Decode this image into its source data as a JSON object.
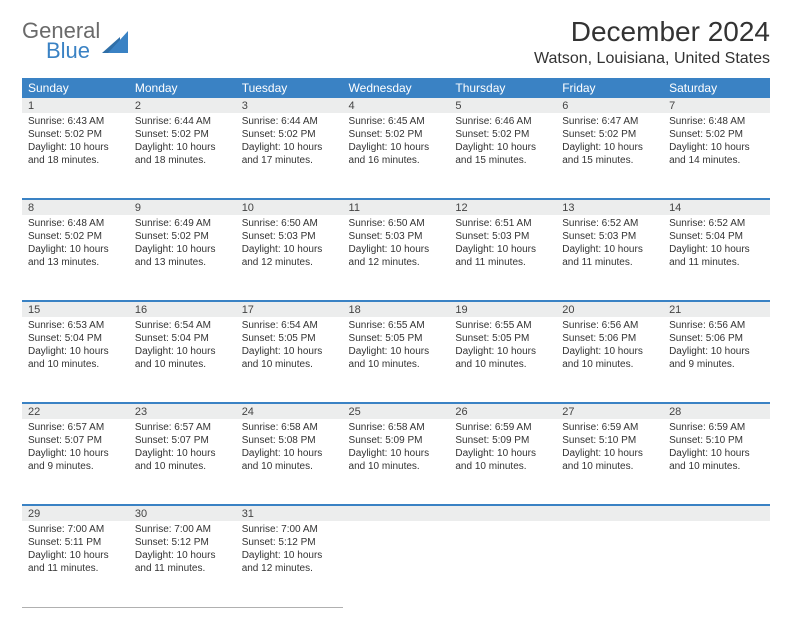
{
  "logo": {
    "line1": "General",
    "line2": "Blue"
  },
  "title": "December 2024",
  "location": "Watson, Louisiana, United States",
  "colors": {
    "header_bg": "#3a82c4",
    "header_text": "#ffffff",
    "daynum_bg": "#eceded",
    "text": "#333333",
    "rule": "#3a82c4"
  },
  "weekdays": [
    "Sunday",
    "Monday",
    "Tuesday",
    "Wednesday",
    "Thursday",
    "Friday",
    "Saturday"
  ],
  "weeks": [
    [
      {
        "n": "1",
        "sr": "Sunrise: 6:43 AM",
        "ss": "Sunset: 5:02 PM",
        "d1": "Daylight: 10 hours",
        "d2": "and 18 minutes."
      },
      {
        "n": "2",
        "sr": "Sunrise: 6:44 AM",
        "ss": "Sunset: 5:02 PM",
        "d1": "Daylight: 10 hours",
        "d2": "and 18 minutes."
      },
      {
        "n": "3",
        "sr": "Sunrise: 6:44 AM",
        "ss": "Sunset: 5:02 PM",
        "d1": "Daylight: 10 hours",
        "d2": "and 17 minutes."
      },
      {
        "n": "4",
        "sr": "Sunrise: 6:45 AM",
        "ss": "Sunset: 5:02 PM",
        "d1": "Daylight: 10 hours",
        "d2": "and 16 minutes."
      },
      {
        "n": "5",
        "sr": "Sunrise: 6:46 AM",
        "ss": "Sunset: 5:02 PM",
        "d1": "Daylight: 10 hours",
        "d2": "and 15 minutes."
      },
      {
        "n": "6",
        "sr": "Sunrise: 6:47 AM",
        "ss": "Sunset: 5:02 PM",
        "d1": "Daylight: 10 hours",
        "d2": "and 15 minutes."
      },
      {
        "n": "7",
        "sr": "Sunrise: 6:48 AM",
        "ss": "Sunset: 5:02 PM",
        "d1": "Daylight: 10 hours",
        "d2": "and 14 minutes."
      }
    ],
    [
      {
        "n": "8",
        "sr": "Sunrise: 6:48 AM",
        "ss": "Sunset: 5:02 PM",
        "d1": "Daylight: 10 hours",
        "d2": "and 13 minutes."
      },
      {
        "n": "9",
        "sr": "Sunrise: 6:49 AM",
        "ss": "Sunset: 5:02 PM",
        "d1": "Daylight: 10 hours",
        "d2": "and 13 minutes."
      },
      {
        "n": "10",
        "sr": "Sunrise: 6:50 AM",
        "ss": "Sunset: 5:03 PM",
        "d1": "Daylight: 10 hours",
        "d2": "and 12 minutes."
      },
      {
        "n": "11",
        "sr": "Sunrise: 6:50 AM",
        "ss": "Sunset: 5:03 PM",
        "d1": "Daylight: 10 hours",
        "d2": "and 12 minutes."
      },
      {
        "n": "12",
        "sr": "Sunrise: 6:51 AM",
        "ss": "Sunset: 5:03 PM",
        "d1": "Daylight: 10 hours",
        "d2": "and 11 minutes."
      },
      {
        "n": "13",
        "sr": "Sunrise: 6:52 AM",
        "ss": "Sunset: 5:03 PM",
        "d1": "Daylight: 10 hours",
        "d2": "and 11 minutes."
      },
      {
        "n": "14",
        "sr": "Sunrise: 6:52 AM",
        "ss": "Sunset: 5:04 PM",
        "d1": "Daylight: 10 hours",
        "d2": "and 11 minutes."
      }
    ],
    [
      {
        "n": "15",
        "sr": "Sunrise: 6:53 AM",
        "ss": "Sunset: 5:04 PM",
        "d1": "Daylight: 10 hours",
        "d2": "and 10 minutes."
      },
      {
        "n": "16",
        "sr": "Sunrise: 6:54 AM",
        "ss": "Sunset: 5:04 PM",
        "d1": "Daylight: 10 hours",
        "d2": "and 10 minutes."
      },
      {
        "n": "17",
        "sr": "Sunrise: 6:54 AM",
        "ss": "Sunset: 5:05 PM",
        "d1": "Daylight: 10 hours",
        "d2": "and 10 minutes."
      },
      {
        "n": "18",
        "sr": "Sunrise: 6:55 AM",
        "ss": "Sunset: 5:05 PM",
        "d1": "Daylight: 10 hours",
        "d2": "and 10 minutes."
      },
      {
        "n": "19",
        "sr": "Sunrise: 6:55 AM",
        "ss": "Sunset: 5:05 PM",
        "d1": "Daylight: 10 hours",
        "d2": "and 10 minutes."
      },
      {
        "n": "20",
        "sr": "Sunrise: 6:56 AM",
        "ss": "Sunset: 5:06 PM",
        "d1": "Daylight: 10 hours",
        "d2": "and 10 minutes."
      },
      {
        "n": "21",
        "sr": "Sunrise: 6:56 AM",
        "ss": "Sunset: 5:06 PM",
        "d1": "Daylight: 10 hours",
        "d2": "and 9 minutes."
      }
    ],
    [
      {
        "n": "22",
        "sr": "Sunrise: 6:57 AM",
        "ss": "Sunset: 5:07 PM",
        "d1": "Daylight: 10 hours",
        "d2": "and 9 minutes."
      },
      {
        "n": "23",
        "sr": "Sunrise: 6:57 AM",
        "ss": "Sunset: 5:07 PM",
        "d1": "Daylight: 10 hours",
        "d2": "and 10 minutes."
      },
      {
        "n": "24",
        "sr": "Sunrise: 6:58 AM",
        "ss": "Sunset: 5:08 PM",
        "d1": "Daylight: 10 hours",
        "d2": "and 10 minutes."
      },
      {
        "n": "25",
        "sr": "Sunrise: 6:58 AM",
        "ss": "Sunset: 5:09 PM",
        "d1": "Daylight: 10 hours",
        "d2": "and 10 minutes."
      },
      {
        "n": "26",
        "sr": "Sunrise: 6:59 AM",
        "ss": "Sunset: 5:09 PM",
        "d1": "Daylight: 10 hours",
        "d2": "and 10 minutes."
      },
      {
        "n": "27",
        "sr": "Sunrise: 6:59 AM",
        "ss": "Sunset: 5:10 PM",
        "d1": "Daylight: 10 hours",
        "d2": "and 10 minutes."
      },
      {
        "n": "28",
        "sr": "Sunrise: 6:59 AM",
        "ss": "Sunset: 5:10 PM",
        "d1": "Daylight: 10 hours",
        "d2": "and 10 minutes."
      }
    ],
    [
      {
        "n": "29",
        "sr": "Sunrise: 7:00 AM",
        "ss": "Sunset: 5:11 PM",
        "d1": "Daylight: 10 hours",
        "d2": "and 11 minutes."
      },
      {
        "n": "30",
        "sr": "Sunrise: 7:00 AM",
        "ss": "Sunset: 5:12 PM",
        "d1": "Daylight: 10 hours",
        "d2": "and 11 minutes."
      },
      {
        "n": "31",
        "sr": "Sunrise: 7:00 AM",
        "ss": "Sunset: 5:12 PM",
        "d1": "Daylight: 10 hours",
        "d2": "and 12 minutes."
      },
      null,
      null,
      null,
      null
    ]
  ]
}
